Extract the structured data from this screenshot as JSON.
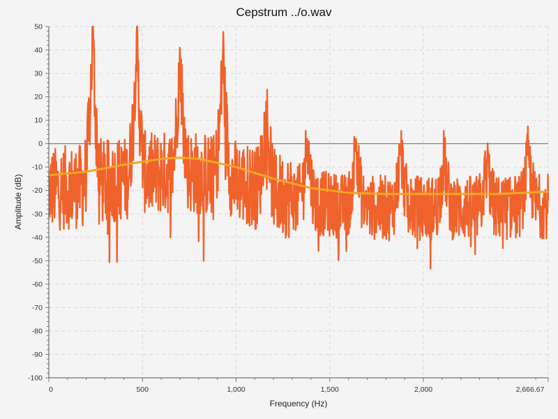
{
  "chart_data": {
    "type": "line",
    "title": "Cepstrum ../o.wav",
    "xlabel": "Frequency (Hz)",
    "ylabel": "Amplitude (dB)",
    "xlim": [
      0,
      2666.67
    ],
    "ylim": [
      -100,
      50
    ],
    "x_ticks": [
      0,
      500,
      1000,
      1500,
      2000,
      2666.67
    ],
    "x_tick_labels": [
      "0",
      "500",
      "1,000",
      "1,500",
      "2,000",
      "2,666.67"
    ],
    "y_ticks": [
      -100,
      -90,
      -80,
      -70,
      -60,
      -50,
      -40,
      -30,
      -20,
      -10,
      0,
      10,
      20,
      30,
      40,
      50
    ],
    "y_tick_labels": [
      "-100",
      "-90",
      "-80",
      "-70",
      "-60",
      "-50",
      "-40",
      "-30",
      "-20",
      "-10",
      "0",
      "10",
      "20",
      "30",
      "40",
      "50"
    ],
    "grid": true,
    "reference_line_y": 0,
    "series": [
      {
        "color": "#f0622b",
        "peaks": [
          {
            "x": 234,
            "y": 47
          },
          {
            "x": 468,
            "y": 47
          },
          {
            "x": 700,
            "y": 41
          },
          {
            "x": 930,
            "y": 39
          },
          {
            "x": 1160,
            "y": 18
          },
          {
            "x": 1380,
            "y": 2
          },
          {
            "x": 1640,
            "y": 2
          },
          {
            "x": 1880,
            "y": -2
          },
          {
            "x": 2110,
            "y": -6
          },
          {
            "x": 2340,
            "y": -7
          },
          {
            "x": 2560,
            "y": -4
          }
        ],
        "min_value": -60
      },
      {
        "color": "#f5a623",
        "x": [
          0,
          200,
          400,
          600,
          700,
          800,
          1000,
          1200,
          1400,
          1600,
          1800,
          2000,
          2200,
          2400,
          2666.67
        ],
        "values": [
          -13.5,
          -12,
          -9,
          -6.5,
          -6,
          -6.5,
          -10,
          -15,
          -19,
          -21,
          -21.5,
          -21.5,
          -21.5,
          -21.5,
          -20.5
        ]
      }
    ]
  }
}
